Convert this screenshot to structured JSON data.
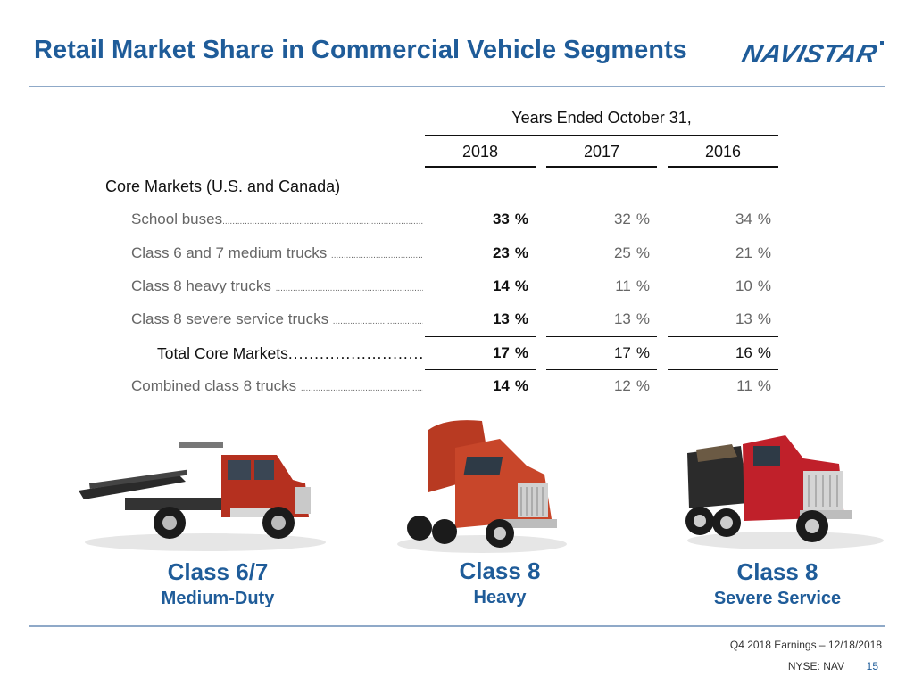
{
  "header": {
    "title": "Retail Market Share in Commercial Vehicle Segments",
    "logo_text": "NAVISTAR"
  },
  "table": {
    "period_header": "Years Ended October 31,",
    "years": [
      "2018",
      "2017",
      "2016"
    ],
    "section_label": "Core Markets (U.S. and Canada)",
    "rows": [
      {
        "label": "School buses",
        "values": [
          "33",
          "32",
          "34"
        ],
        "unit": "%"
      },
      {
        "label": "Class 6 and 7 medium trucks ",
        "values": [
          "23",
          "25",
          "21"
        ],
        "unit": "%"
      },
      {
        "label": "Class 8 heavy trucks ",
        "values": [
          "14",
          "11",
          "10"
        ],
        "unit": "%"
      },
      {
        "label": "Class 8 severe service trucks ",
        "values": [
          "13",
          "13",
          "13"
        ],
        "unit": "%"
      }
    ],
    "total": {
      "label": "Total Core Markets",
      "values": [
        "17",
        "17",
        "16"
      ],
      "unit": "%"
    },
    "combined": {
      "label": "Combined class 8 trucks ",
      "values": [
        "14",
        "12",
        "11"
      ],
      "unit": "%"
    }
  },
  "trucks": [
    {
      "class": "Class 6/7",
      "type": "Medium-Duty"
    },
    {
      "class": "Class 8",
      "type": "Heavy"
    },
    {
      "class": "Class 8",
      "type": "Severe Service"
    }
  ],
  "footer": {
    "event": "Q4 2018 Earnings – 12/18/2018",
    "ticker": "NYSE: NAV",
    "page_number": "15"
  },
  "colors": {
    "brand_blue": "#1f5c99",
    "truck_red": "#b5301f",
    "rule": "#8fa9c8"
  }
}
